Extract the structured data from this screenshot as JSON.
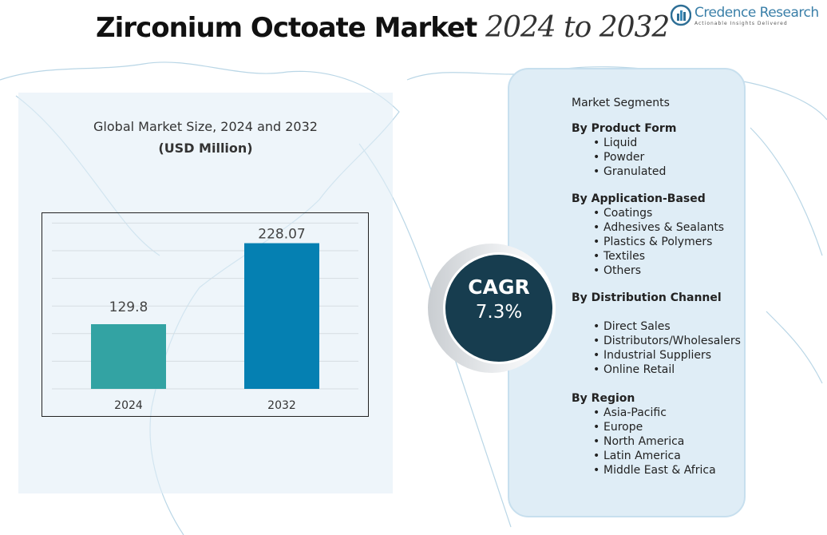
{
  "header": {
    "title": "Zirconium Octoate Market",
    "title_years": "2024 to 2032"
  },
  "logo": {
    "name": "Credence Research",
    "tagline": "Actionable Insights Delivered"
  },
  "chart_data": {
    "type": "bar",
    "title": "Global Market Size, 2024 and 2032",
    "subtitle": "(USD Million)",
    "categories": [
      "2024",
      "2032"
    ],
    "values": [
      129.8,
      228.07
    ],
    "value_labels": [
      "129.8",
      "228.07"
    ],
    "colors": [
      "#33a3a3",
      "#0580b2"
    ],
    "ylim": [
      0,
      260
    ],
    "grid": true
  },
  "cagr": {
    "label": "CAGR",
    "value": "7.3%"
  },
  "segments": {
    "title": "Market Segments",
    "groups": [
      {
        "heading": "By Product Form",
        "items": [
          "Liquid",
          "Powder",
          "Granulated"
        ]
      },
      {
        "heading": "By Application-Based",
        "items": [
          "Coatings",
          "Adhesives & Sealants",
          "Plastics & Polymers",
          "Textiles",
          "Others"
        ]
      },
      {
        "heading": "By Distribution Channel",
        "items": [
          "Direct Sales",
          "Distributors/Wholesalers",
          "Industrial Suppliers",
          "Online Retail"
        ]
      },
      {
        "heading": "By Region",
        "items": [
          "Asia-Pacific",
          "Europe",
          "North America",
          "Latin America",
          "Middle East & Africa"
        ]
      }
    ]
  }
}
